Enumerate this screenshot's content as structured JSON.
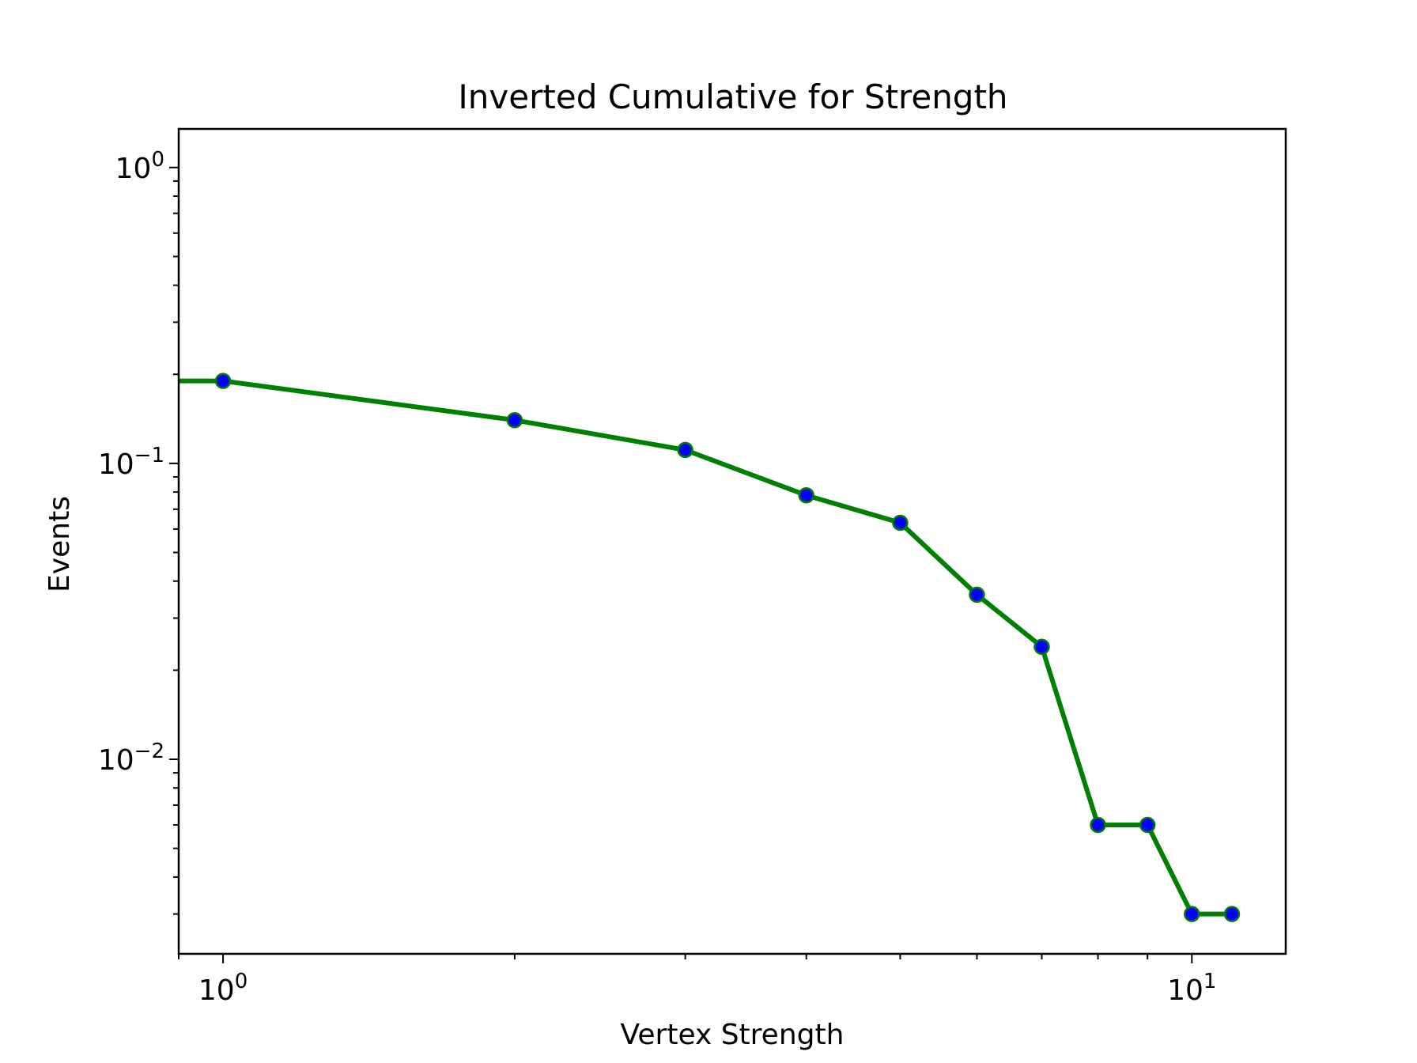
{
  "chart_data": {
    "type": "line",
    "title": "Inverted Cumulative for Strength",
    "xlabel": "Vertex Strength",
    "ylabel": "Events",
    "xscale": "log",
    "yscale": "log",
    "xlim": [
      0.9,
      12.5
    ],
    "ylim": [
      0.0022,
      1.35
    ],
    "grid": false,
    "x_major_ticks": [
      {
        "value": 1,
        "base": "10",
        "exp": "0"
      },
      {
        "value": 10,
        "base": "10",
        "exp": "1"
      }
    ],
    "y_major_ticks": [
      {
        "value": 1,
        "base": "10",
        "exp": "0"
      },
      {
        "value": 0.1,
        "base": "10",
        "exp": "−1"
      },
      {
        "value": 0.01,
        "base": "10",
        "exp": "−2"
      }
    ],
    "series": [
      {
        "line_color": "#008000",
        "marker_color": "#0000ff",
        "x": [
          0.9,
          1,
          2,
          3,
          4,
          5,
          6,
          7,
          8,
          9,
          10,
          11
        ],
        "y": [
          0.19,
          0.19,
          0.14,
          0.111,
          0.078,
          0.063,
          0.036,
          0.024,
          0.006,
          0.006,
          0.003,
          0.003
        ],
        "marker_start": 1
      }
    ]
  }
}
